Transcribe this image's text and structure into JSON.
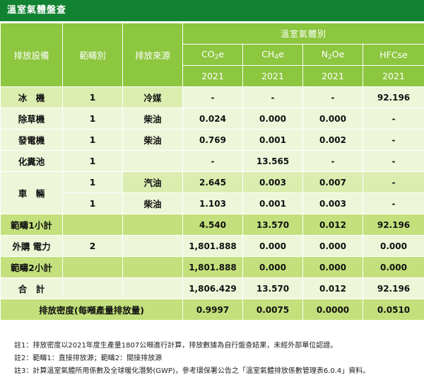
{
  "title": "溫室氣體盤查",
  "header": {
    "equipment": "排放設備",
    "scope": "範疇別",
    "source": "排放來源",
    "group": "溫室氣體別",
    "gases": [
      {
        "base": "CO",
        "sub": "2",
        "tail": "e",
        "year": "2021"
      },
      {
        "base": "CH",
        "sub": "4",
        "tail": "e",
        "year": "2021"
      },
      {
        "base": "N",
        "sub": "2",
        "tail": "Oe",
        "year": "2021"
      },
      {
        "base": "HFCs",
        "sub": "",
        "tail": "e",
        "year": "2021"
      }
    ]
  },
  "rows": {
    "r1": {
      "equipment": "冰　機",
      "scope": "1",
      "source": "冷媒",
      "v": [
        "-",
        "-",
        "-",
        "92.196"
      ]
    },
    "r2": {
      "equipment": "除草機",
      "scope": "1",
      "source": "柴油",
      "v": [
        "0.024",
        "0.000",
        "0.000",
        "-"
      ]
    },
    "r3": {
      "equipment": "發電機",
      "scope": "1",
      "source": "柴油",
      "v": [
        "0.769",
        "0.001",
        "0.002",
        "-"
      ]
    },
    "r4": {
      "equipment": "化糞池",
      "scope": "1",
      "source": "",
      "v": [
        "-",
        "13.565",
        "-",
        "-"
      ]
    },
    "r5": {
      "equipment": "車　輛",
      "scope": "1",
      "source": "汽油",
      "v": [
        "2.645",
        "0.003",
        "0.007",
        "-"
      ]
    },
    "r6": {
      "scope": "1",
      "source": "柴油",
      "v": [
        "1.103",
        "0.001",
        "0.003",
        "-"
      ]
    },
    "r7": {
      "equipment": "範疇1小計",
      "scope": "",
      "source": "",
      "v": [
        "4.540",
        "13.570",
        "0.012",
        "92.196"
      ]
    },
    "r8": {
      "equipment": "外購 電力",
      "scope": "2",
      "source": "",
      "v": [
        "1,801.888",
        "0.000",
        "0.000",
        "0.000"
      ]
    },
    "r9": {
      "equipment": "範疇2小計",
      "scope": "",
      "source": "",
      "v": [
        "1,801.888",
        "0.000",
        "0.000",
        "0.000"
      ]
    },
    "r10": {
      "equipment": "合　計",
      "scope": "",
      "source": "",
      "v": [
        "1,806.429",
        "13.570",
        "0.012",
        "92.196"
      ]
    },
    "r11": {
      "equipment": "排放密度(每噸產量排放量)",
      "v": [
        "0.9997",
        "0.0075",
        "0.0000",
        "0.0510"
      ]
    }
  },
  "notes": [
    "註1：排放密度以2021年度生產量1807公噸進行計算，排放數據為自行盤查結果，未經外部單位認證。",
    "註2：範疇1：直接排放源；範疇2：間接排放源",
    "註3：計算溫室氣體所用係數及全球暖化潛勢(GWP)，參考環保署公告之「溫室氣體排放係數管理表6.0.4」資料。"
  ]
}
